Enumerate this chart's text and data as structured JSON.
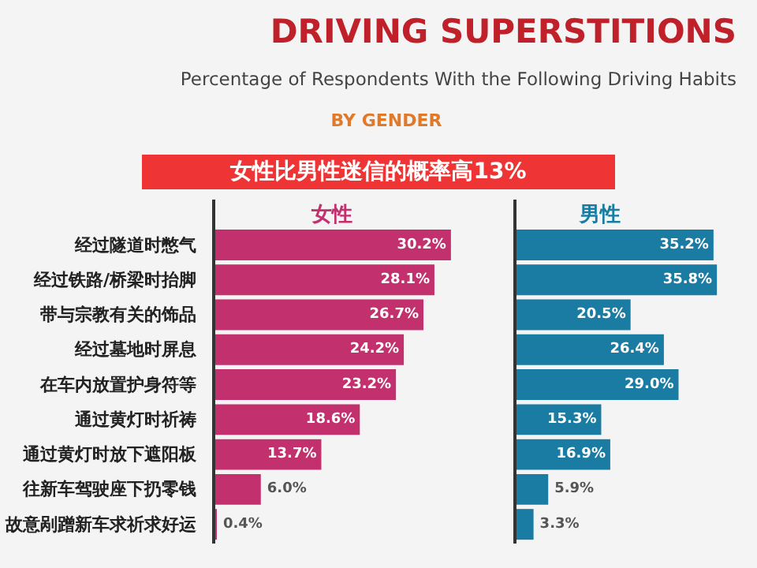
{
  "chart_data": [
    {
      "type": "bar",
      "orientation": "horizontal",
      "title": "DRIVING SUPERSTITIONS",
      "subtitle": "Percentage of Respondents With the Following Driving Habits",
      "annotations": [
        "BY GENDER",
        "女性比男性迷信的概率高13%"
      ],
      "categories": [
        "经过隧道时憋气",
        "经过铁路/桥梁时抬脚",
        "带与宗教有关的饰品",
        "经过墓地时屏息",
        "在车内放置护身符等",
        "通过黄灯时祈祷",
        "通过黄灯时放下遮阳板",
        "往新车驾驶座下扔零钱",
        "故意剐蹭新车求祈求好运"
      ],
      "series": [
        {
          "name": "女性",
          "color": "#c2306e",
          "values": [
            30.2,
            28.1,
            26.7,
            24.2,
            23.2,
            18.6,
            13.7,
            6.0,
            0.4
          ],
          "value_labels": [
            "30.2%",
            "28.1%",
            "26.7%",
            "24.2%",
            "23.2%",
            "18.6%",
            "13.7%",
            "6.0%",
            "0.4%"
          ]
        }
      ],
      "tick_labels": "y",
      "grid": false
    },
    {
      "type": "bar",
      "orientation": "horizontal",
      "categories": [
        null,
        null,
        null,
        null,
        null,
        null,
        null,
        null,
        null
      ],
      "series": [
        {
          "name": "男性",
          "color": "#1a7ca3",
          "values": [
            35.2,
            35.8,
            20.5,
            26.4,
            29.0,
            15.3,
            16.9,
            5.9,
            3.3
          ],
          "value_labels": [
            "35.2%",
            "35.8%",
            "20.5%",
            "26.4%",
            "29.0%",
            "15.3%",
            "16.9%",
            "5.9%",
            "3.3%"
          ]
        }
      ],
      "tick_labels": "y",
      "grid": false
    }
  ]
}
